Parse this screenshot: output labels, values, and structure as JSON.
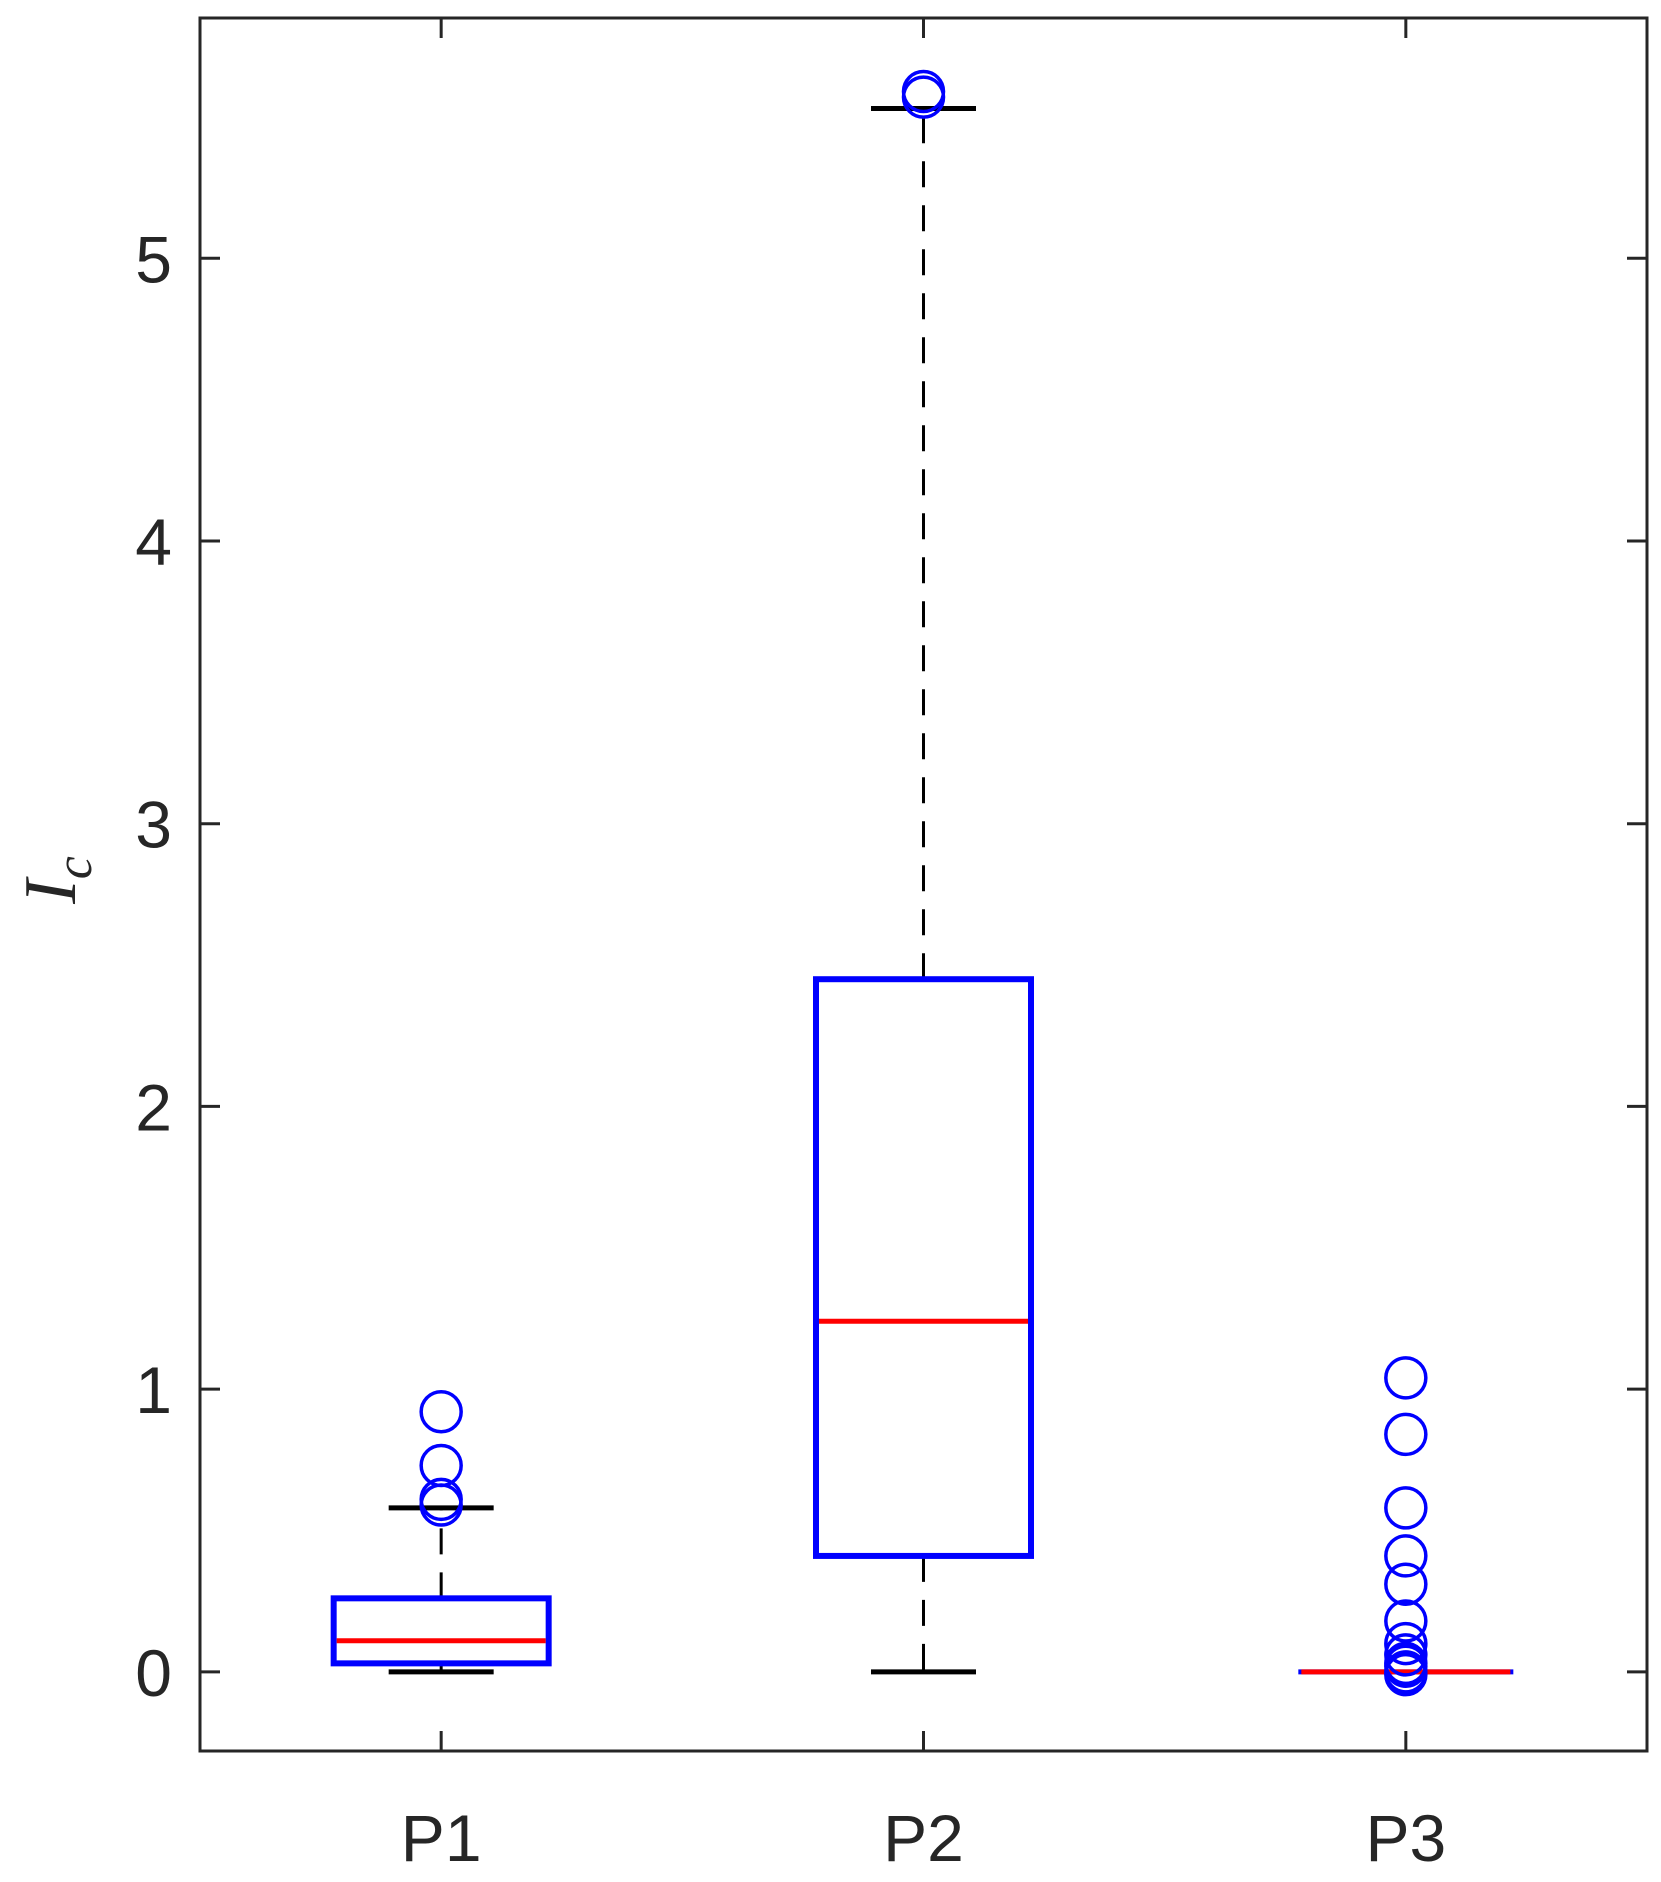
{
  "chart_data": {
    "type": "box",
    "title": "",
    "xlabel": "",
    "ylabel": {
      "base": "I",
      "subscript": "c"
    },
    "ylim": [
      -0.28,
      5.85
    ],
    "yticks": [
      0,
      1,
      2,
      3,
      4,
      5
    ],
    "ytick_labels": [
      "0",
      "1",
      "2",
      "3",
      "4",
      "5"
    ],
    "categories": [
      "P1",
      "P2",
      "P3"
    ],
    "grid": false,
    "colors": {
      "box": "#0000ff",
      "median": "#ff0000",
      "whisker": "#000000",
      "outlier": "#0000ff",
      "axes": "#262626"
    },
    "boxes": [
      {
        "category": "P1",
        "whisker_low": 0.0,
        "q1": 0.03,
        "median": 0.11,
        "q3": 0.26,
        "whisker_high": 0.58,
        "outliers": [
          0.92,
          0.73,
          0.61,
          0.59
        ]
      },
      {
        "category": "P2",
        "whisker_low": 0.0,
        "q1": 0.41,
        "median": 1.24,
        "q3": 2.45,
        "whisker_high": 5.53,
        "outliers": [
          5.59,
          5.57
        ]
      },
      {
        "category": "P3",
        "whisker_low": 0.0,
        "q1": 0.0,
        "median": 0.0,
        "q3": 0.0,
        "whisker_high": 0.0,
        "outliers": [
          1.04,
          0.84,
          0.58,
          0.41,
          0.31,
          0.18,
          0.1,
          0.06,
          0.03,
          0.02,
          0.0,
          -0.01
        ]
      }
    ]
  }
}
